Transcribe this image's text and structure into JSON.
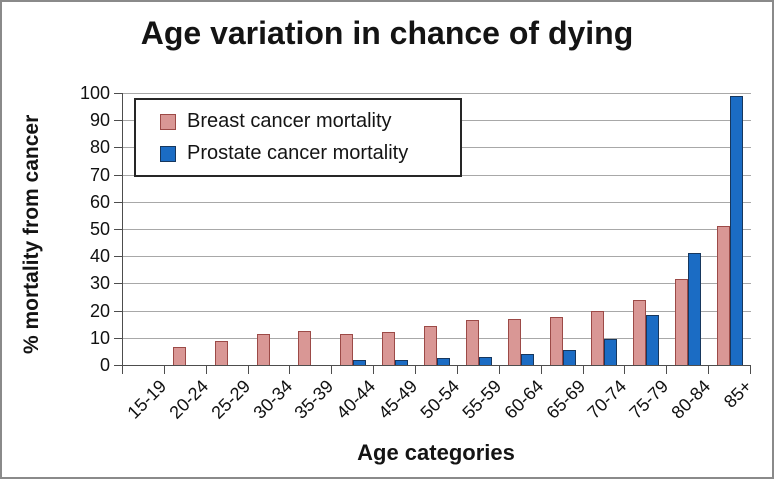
{
  "title": "Age variation in chance of dying",
  "colors": {
    "background": "#ffffff",
    "frame_border": "#8a8a8a",
    "gridline": "#a8a8a8",
    "axis": "#4d4d4d",
    "legend_border": "#262626",
    "breast_fill": "#d99795",
    "breast_border": "#9c4a47",
    "prostate_fill": "#1b6cc4",
    "prostate_border": "#17375d"
  },
  "chart_data": {
    "type": "bar",
    "title": "Age variation in chance of dying",
    "xlabel": "Age categories",
    "ylabel": "% mortality from cancer",
    "ylim": [
      0,
      100
    ],
    "ytick_step": 10,
    "grid": true,
    "legend_position": "top-left-inside",
    "categories": [
      "15-19",
      "20-24",
      "25-29",
      "30-34",
      "35-39",
      "40-44",
      "45-49",
      "50-54",
      "55-59",
      "60-64",
      "65-69",
      "70-74",
      "75-79",
      "80-84",
      "85+"
    ],
    "series": [
      {
        "name": "Breast cancer mortality",
        "color": "#d99795",
        "border": "#9c4a47",
        "values": [
          0,
          6.5,
          9,
          11.5,
          12.5,
          11.5,
          12,
          14.5,
          16.5,
          17,
          17.5,
          20,
          24,
          31.5,
          51
        ]
      },
      {
        "name": "Prostate cancer mortality",
        "color": "#1b6cc4",
        "border": "#17375d",
        "values": [
          0,
          0,
          0,
          0,
          0,
          2,
          2,
          2.5,
          3,
          4,
          5.5,
          9.5,
          18.5,
          41,
          99
        ]
      }
    ]
  }
}
